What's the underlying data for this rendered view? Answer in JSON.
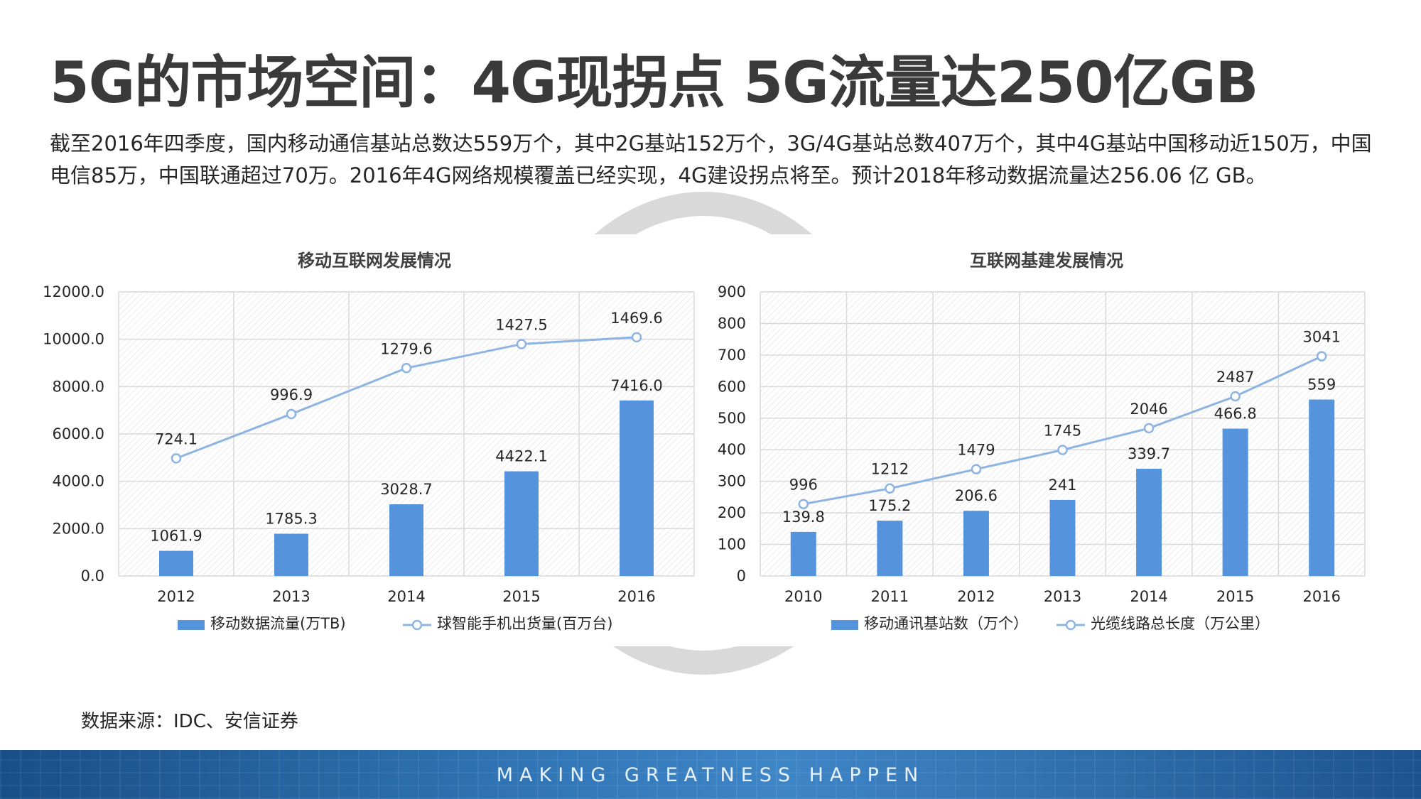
{
  "page": {
    "title": "5G的市场空间：4G现拐点 5G流量达250亿GB",
    "description": "截至2016年四季度，国内移动通信基站总数达559万个，其中2G基站152万个，3G/4G基站总数407万个，其中4G基站中国移动近150万，中国电信85万，中国联通超过70万。2016年4G网络规模覆盖已经实现，4G建设拐点将至。预计2018年移动数据流量达256.06 亿 GB。",
    "source": "数据来源：IDC、安信证券",
    "footer_slogan": "MAKING GREATNESS HAPPEN",
    "colors": {
      "bar": "#5594dc",
      "line": "#8db4e2",
      "grid": "#d9d9d9"
    }
  },
  "chart_data": [
    {
      "type": "bar",
      "title": "移动互联网发展情况",
      "categories": [
        "2012",
        "2013",
        "2014",
        "2015",
        "2016"
      ],
      "ylim": [
        0,
        12000
      ],
      "yticks": [
        "0.0",
        "2000.0",
        "4000.0",
        "6000.0",
        "8000.0",
        "10000.0",
        "12000.0"
      ],
      "grid": true,
      "legend": "bottom",
      "series": [
        {
          "name": "移动数据流量(万TB)",
          "type": "bar",
          "values": [
            1061.9,
            1785.3,
            3028.7,
            4422.1,
            7416.0
          ],
          "labels": [
            "1061.9",
            "1785.3",
            "3028.7",
            "4422.1",
            "7416.0"
          ]
        },
        {
          "name": "球智能手机出货量(百万台)",
          "type": "line",
          "values": [
            724.1,
            996.9,
            1279.6,
            1427.5,
            1469.6
          ],
          "labels": [
            "724.1",
            "996.9",
            "1279.6",
            "1427.5",
            "1469.6"
          ]
        }
      ]
    },
    {
      "type": "bar",
      "title": "互联网基建发展情况",
      "categories": [
        "2010",
        "2011",
        "2012",
        "2013",
        "2014",
        "2015",
        "2016"
      ],
      "ylim": [
        0,
        900
      ],
      "yticks": [
        "0",
        "100",
        "200",
        "300",
        "400",
        "500",
        "600",
        "700",
        "800",
        "900"
      ],
      "grid": true,
      "legend": "bottom",
      "series": [
        {
          "name": "移动通讯基站数（万个）",
          "type": "bar",
          "values": [
            139.8,
            175.2,
            206.6,
            241,
            339.7,
            466.8,
            559
          ],
          "labels": [
            "139.8",
            "175.2",
            "206.6",
            "241",
            "339.7",
            "466.8",
            "559"
          ]
        },
        {
          "name": "光缆线路总长度（万公里）",
          "type": "line",
          "values": [
            996,
            1212,
            1479,
            1745,
            2046,
            2487,
            3041
          ],
          "labels": [
            "996",
            "1212",
            "1479",
            "1745",
            "2046",
            "2487",
            "3041"
          ]
        }
      ]
    }
  ]
}
